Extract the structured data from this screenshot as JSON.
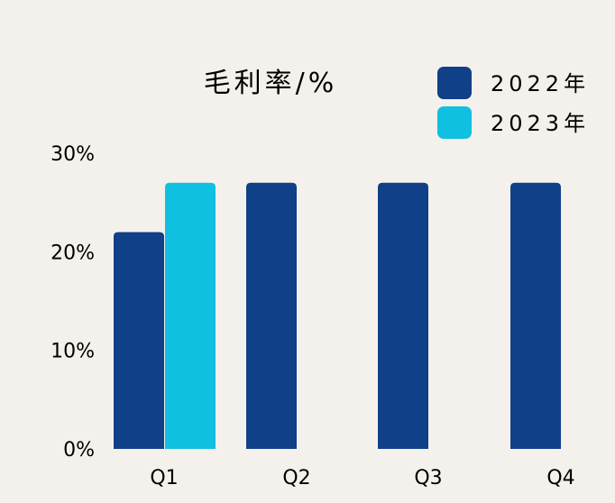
{
  "chart_data": {
    "type": "bar",
    "title": "毛利率/%",
    "xlabel": "",
    "ylabel": "",
    "categories": [
      "Q1",
      "Q2",
      "Q3",
      "Q4"
    ],
    "series": [
      {
        "name": "2022年",
        "color": "#0f4088",
        "values": [
          22,
          27,
          27,
          27
        ]
      },
      {
        "name": "2023年",
        "color": "#10c0e0",
        "values": [
          27,
          null,
          null,
          null
        ]
      }
    ],
    "yticks": [
      "0%",
      "10%",
      "20%",
      "30%"
    ],
    "ylim": [
      0,
      30
    ],
    "grid": false,
    "legend_position": "top-right"
  }
}
